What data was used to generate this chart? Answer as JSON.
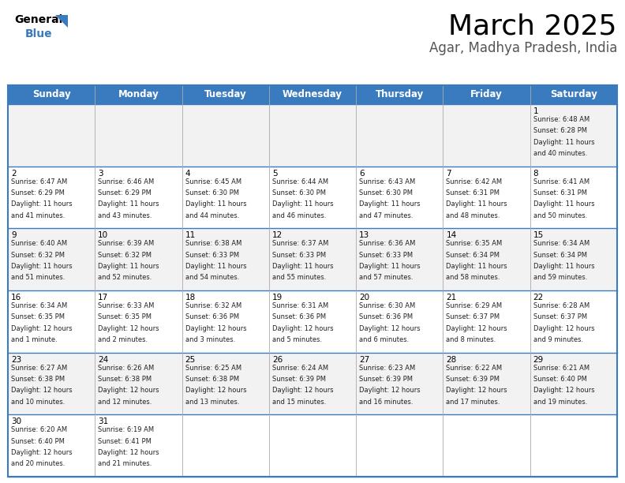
{
  "title": "March 2025",
  "subtitle": "Agar, Madhya Pradesh, India",
  "header_color": "#3a7bbf",
  "header_text_color": "#ffffff",
  "cell_bg_even": "#f2f2f2",
  "cell_bg_odd": "#ffffff",
  "day_headers": [
    "Sunday",
    "Monday",
    "Tuesday",
    "Wednesday",
    "Thursday",
    "Friday",
    "Saturday"
  ],
  "days_data": [
    {
      "day": 1,
      "col": 6,
      "row": 0,
      "sunrise": "6:48 AM",
      "sunset": "6:28 PM",
      "daylight": "11 hours and 40 minutes."
    },
    {
      "day": 2,
      "col": 0,
      "row": 1,
      "sunrise": "6:47 AM",
      "sunset": "6:29 PM",
      "daylight": "11 hours and 41 minutes."
    },
    {
      "day": 3,
      "col": 1,
      "row": 1,
      "sunrise": "6:46 AM",
      "sunset": "6:29 PM",
      "daylight": "11 hours and 43 minutes."
    },
    {
      "day": 4,
      "col": 2,
      "row": 1,
      "sunrise": "6:45 AM",
      "sunset": "6:30 PM",
      "daylight": "11 hours and 44 minutes."
    },
    {
      "day": 5,
      "col": 3,
      "row": 1,
      "sunrise": "6:44 AM",
      "sunset": "6:30 PM",
      "daylight": "11 hours and 46 minutes."
    },
    {
      "day": 6,
      "col": 4,
      "row": 1,
      "sunrise": "6:43 AM",
      "sunset": "6:30 PM",
      "daylight": "11 hours and 47 minutes."
    },
    {
      "day": 7,
      "col": 5,
      "row": 1,
      "sunrise": "6:42 AM",
      "sunset": "6:31 PM",
      "daylight": "11 hours and 48 minutes."
    },
    {
      "day": 8,
      "col": 6,
      "row": 1,
      "sunrise": "6:41 AM",
      "sunset": "6:31 PM",
      "daylight": "11 hours and 50 minutes."
    },
    {
      "day": 9,
      "col": 0,
      "row": 2,
      "sunrise": "6:40 AM",
      "sunset": "6:32 PM",
      "daylight": "11 hours and 51 minutes."
    },
    {
      "day": 10,
      "col": 1,
      "row": 2,
      "sunrise": "6:39 AM",
      "sunset": "6:32 PM",
      "daylight": "11 hours and 52 minutes."
    },
    {
      "day": 11,
      "col": 2,
      "row": 2,
      "sunrise": "6:38 AM",
      "sunset": "6:33 PM",
      "daylight": "11 hours and 54 minutes."
    },
    {
      "day": 12,
      "col": 3,
      "row": 2,
      "sunrise": "6:37 AM",
      "sunset": "6:33 PM",
      "daylight": "11 hours and 55 minutes."
    },
    {
      "day": 13,
      "col": 4,
      "row": 2,
      "sunrise": "6:36 AM",
      "sunset": "6:33 PM",
      "daylight": "11 hours and 57 minutes."
    },
    {
      "day": 14,
      "col": 5,
      "row": 2,
      "sunrise": "6:35 AM",
      "sunset": "6:34 PM",
      "daylight": "11 hours and 58 minutes."
    },
    {
      "day": 15,
      "col": 6,
      "row": 2,
      "sunrise": "6:34 AM",
      "sunset": "6:34 PM",
      "daylight": "11 hours and 59 minutes."
    },
    {
      "day": 16,
      "col": 0,
      "row": 3,
      "sunrise": "6:34 AM",
      "sunset": "6:35 PM",
      "daylight": "12 hours and 1 minute."
    },
    {
      "day": 17,
      "col": 1,
      "row": 3,
      "sunrise": "6:33 AM",
      "sunset": "6:35 PM",
      "daylight": "12 hours and 2 minutes."
    },
    {
      "day": 18,
      "col": 2,
      "row": 3,
      "sunrise": "6:32 AM",
      "sunset": "6:36 PM",
      "daylight": "12 hours and 3 minutes."
    },
    {
      "day": 19,
      "col": 3,
      "row": 3,
      "sunrise": "6:31 AM",
      "sunset": "6:36 PM",
      "daylight": "12 hours and 5 minutes."
    },
    {
      "day": 20,
      "col": 4,
      "row": 3,
      "sunrise": "6:30 AM",
      "sunset": "6:36 PM",
      "daylight": "12 hours and 6 minutes."
    },
    {
      "day": 21,
      "col": 5,
      "row": 3,
      "sunrise": "6:29 AM",
      "sunset": "6:37 PM",
      "daylight": "12 hours and 8 minutes."
    },
    {
      "day": 22,
      "col": 6,
      "row": 3,
      "sunrise": "6:28 AM",
      "sunset": "6:37 PM",
      "daylight": "12 hours and 9 minutes."
    },
    {
      "day": 23,
      "col": 0,
      "row": 4,
      "sunrise": "6:27 AM",
      "sunset": "6:38 PM",
      "daylight": "12 hours and 10 minutes."
    },
    {
      "day": 24,
      "col": 1,
      "row": 4,
      "sunrise": "6:26 AM",
      "sunset": "6:38 PM",
      "daylight": "12 hours and 12 minutes."
    },
    {
      "day": 25,
      "col": 2,
      "row": 4,
      "sunrise": "6:25 AM",
      "sunset": "6:38 PM",
      "daylight": "12 hours and 13 minutes."
    },
    {
      "day": 26,
      "col": 3,
      "row": 4,
      "sunrise": "6:24 AM",
      "sunset": "6:39 PM",
      "daylight": "12 hours and 15 minutes."
    },
    {
      "day": 27,
      "col": 4,
      "row": 4,
      "sunrise": "6:23 AM",
      "sunset": "6:39 PM",
      "daylight": "12 hours and 16 minutes."
    },
    {
      "day": 28,
      "col": 5,
      "row": 4,
      "sunrise": "6:22 AM",
      "sunset": "6:39 PM",
      "daylight": "12 hours and 17 minutes."
    },
    {
      "day": 29,
      "col": 6,
      "row": 4,
      "sunrise": "6:21 AM",
      "sunset": "6:40 PM",
      "daylight": "12 hours and 19 minutes."
    },
    {
      "day": 30,
      "col": 0,
      "row": 5,
      "sunrise": "6:20 AM",
      "sunset": "6:40 PM",
      "daylight": "12 hours and 20 minutes."
    },
    {
      "day": 31,
      "col": 1,
      "row": 5,
      "sunrise": "6:19 AM",
      "sunset": "6:41 PM",
      "daylight": "12 hours and 21 minutes."
    }
  ],
  "n_rows": 6,
  "n_cols": 7,
  "line_color": "#3a7bbf",
  "font_size_title": 26,
  "font_size_subtitle": 12,
  "font_size_header": 8.5,
  "font_size_day_num": 7.5,
  "font_size_info": 6.0,
  "logo_fontsize": 10,
  "logo_blue_color": "#3a7bbf",
  "triangle_color": "#3a7bbf"
}
